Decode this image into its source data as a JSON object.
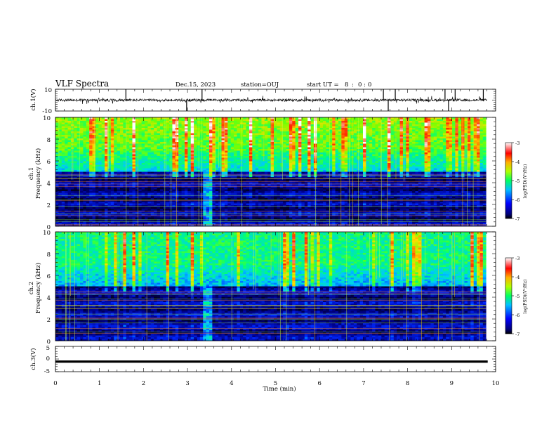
{
  "header": {
    "title": "VLF Spectra",
    "date": "Dec.15, 2023",
    "station": "station=OUJ",
    "start_label": "start UT =",
    "start_h": "8",
    "start_colon1": ":",
    "start_m": "0",
    "start_colon2": ":",
    "start_s": "0"
  },
  "chart_data": [
    {
      "type": "line",
      "panel": "ch1-waveform",
      "ylabel": "ch.1(V)",
      "ylim": [
        -10,
        10
      ],
      "yticks": [
        "10",
        "-10"
      ],
      "xlim": [
        0,
        10
      ],
      "baseline": 0,
      "spikes_at_min": [
        1.6,
        2.98,
        3.33,
        7.45,
        7.56,
        7.72,
        8.85,
        8.93,
        9.08,
        9.72
      ],
      "color": "#000000"
    },
    {
      "type": "heatmap",
      "panel": "ch1-spectrogram",
      "ylabel_line1": "ch.1",
      "ylabel_line2": "Frequency (kHz)",
      "ylim": [
        0,
        10
      ],
      "yticks": [
        "0",
        "2",
        "4",
        "6",
        "8",
        "10"
      ],
      "xlim": [
        0,
        10
      ],
      "colorbar": {
        "label": "log(PSD)(V²/Hz)",
        "range": [
          -7,
          -3
        ],
        "ticks": [
          "-3",
          "-4",
          "-5",
          "-6",
          "-7"
        ]
      }
    },
    {
      "type": "heatmap",
      "panel": "ch2-spectrogram",
      "ylabel_line1": "ch.2",
      "ylabel_line2": "Frequency (kHz)",
      "ylim": [
        0,
        10
      ],
      "yticks": [
        "0",
        "2",
        "4",
        "6",
        "8",
        "10"
      ],
      "xlim": [
        0,
        10
      ],
      "colorbar": {
        "label": "log(PSD)(V²/Hz)",
        "range": [
          -7,
          -3
        ],
        "ticks": [
          "-3",
          "-4",
          "-5",
          "-6",
          "-7"
        ]
      }
    },
    {
      "type": "line",
      "panel": "ch3-waveform",
      "ylabel": "ch.3(V)",
      "ylim": [
        -5,
        5
      ],
      "yticks": [
        "5",
        "0",
        "-5"
      ],
      "xlim": [
        0,
        10
      ],
      "level": -1,
      "color": "#000000",
      "xlabel": "Time (min)",
      "xticks": [
        "0",
        "1",
        "2",
        "3",
        "4",
        "5",
        "6",
        "7",
        "8",
        "9",
        "10"
      ]
    }
  ]
}
